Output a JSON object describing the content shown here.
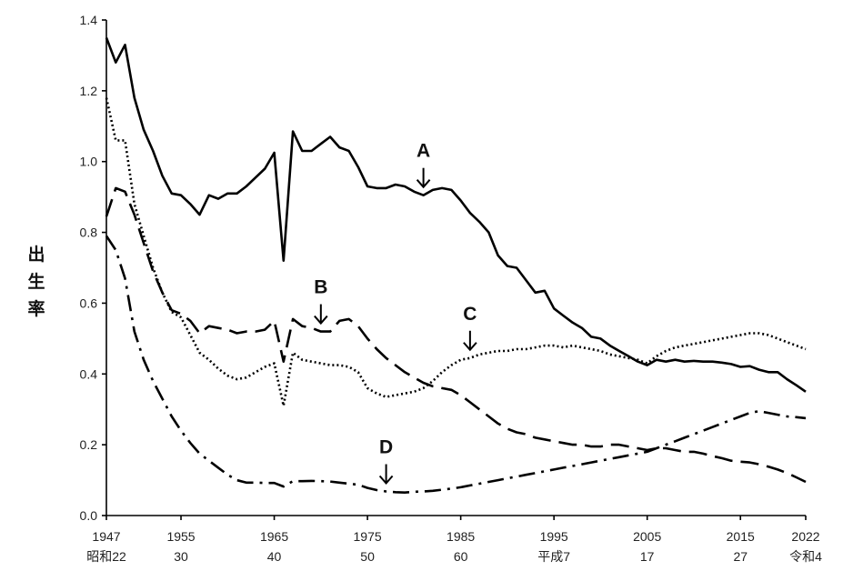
{
  "chart_data": {
    "type": "line",
    "title": "",
    "xlabel": "",
    "ylabel": "出生率",
    "xlim": [
      1947,
      2022
    ],
    "ylim": [
      0,
      1.4
    ],
    "grid": false,
    "legend": "none",
    "y_ticks": [
      "0.0",
      "0.2",
      "0.4",
      "0.6",
      "0.8",
      "1.0",
      "1.2",
      "1.4"
    ],
    "x_ticks": [
      {
        "year": 1947,
        "label": "1947",
        "era": "昭和22"
      },
      {
        "year": 1955,
        "label": "1955",
        "era": "30"
      },
      {
        "year": 1965,
        "label": "1965",
        "era": "40"
      },
      {
        "year": 1975,
        "label": "1975",
        "era": "50"
      },
      {
        "year": 1985,
        "label": "1985",
        "era": "60"
      },
      {
        "year": 1995,
        "label": "1995",
        "era": "平成7"
      },
      {
        "year": 2005,
        "label": "2005",
        "era": "17"
      },
      {
        "year": 2015,
        "label": "2015",
        "era": "27"
      },
      {
        "year": 2022,
        "label": "2022",
        "era": "令和4"
      }
    ],
    "annotations": [
      {
        "label": "A",
        "series": 0,
        "x": 1981
      },
      {
        "label": "B",
        "series": 1,
        "x": 1970
      },
      {
        "label": "C",
        "series": 2,
        "x": 1986
      },
      {
        "label": "D",
        "series": 3,
        "x": 1977
      }
    ],
    "series": [
      {
        "style": "solid",
        "x": [
          1947,
          1948,
          1949,
          1950,
          1951,
          1952,
          1953,
          1954,
          1955,
          1956,
          1957,
          1958,
          1959,
          1960,
          1961,
          1962,
          1963,
          1964,
          1965,
          1966,
          1967,
          1968,
          1969,
          1970,
          1971,
          1972,
          1973,
          1974,
          1975,
          1976,
          1977,
          1978,
          1979,
          1980,
          1981,
          1982,
          1983,
          1984,
          1985,
          1986,
          1987,
          1988,
          1989,
          1990,
          1991,
          1992,
          1993,
          1994,
          1995,
          1996,
          1997,
          1998,
          1999,
          2000,
          2001,
          2002,
          2003,
          2004,
          2005,
          2006,
          2007,
          2008,
          2009,
          2010,
          2011,
          2012,
          2013,
          2014,
          2015,
          2016,
          2017,
          2018,
          2019,
          2020,
          2021,
          2022
        ],
        "y": [
          1.35,
          1.28,
          1.33,
          1.18,
          1.09,
          1.03,
          0.96,
          0.91,
          0.905,
          0.88,
          0.85,
          0.905,
          0.895,
          0.91,
          0.91,
          0.93,
          0.955,
          0.98,
          1.025,
          0.72,
          1.085,
          1.03,
          1.03,
          1.05,
          1.07,
          1.04,
          1.03,
          0.985,
          0.93,
          0.925,
          0.925,
          0.935,
          0.93,
          0.915,
          0.905,
          0.92,
          0.925,
          0.92,
          0.89,
          0.855,
          0.83,
          0.8,
          0.735,
          0.705,
          0.7,
          0.665,
          0.63,
          0.635,
          0.585,
          0.565,
          0.545,
          0.53,
          0.505,
          0.5,
          0.48,
          0.465,
          0.45,
          0.435,
          0.425,
          0.44,
          0.435,
          0.44,
          0.435,
          0.437,
          0.435,
          0.435,
          0.432,
          0.428,
          0.42,
          0.422,
          0.412,
          0.405,
          0.405,
          0.385,
          0.368,
          0.35
        ]
      },
      {
        "style": "dashed",
        "x": [
          1947,
          1948,
          1949,
          1950,
          1951,
          1952,
          1953,
          1954,
          1955,
          1956,
          1957,
          1958,
          1959,
          1960,
          1961,
          1962,
          1963,
          1964,
          1965,
          1966,
          1967,
          1968,
          1969,
          1970,
          1971,
          1972,
          1973,
          1974,
          1975,
          1976,
          1977,
          1978,
          1979,
          1980,
          1981,
          1982,
          1983,
          1984,
          1985,
          1986,
          1987,
          1988,
          1989,
          1990,
          1991,
          1992,
          1993,
          1994,
          1995,
          1996,
          1997,
          1998,
          1999,
          2000,
          2001,
          2002,
          2003,
          2004,
          2005,
          2006,
          2007,
          2008,
          2009,
          2010,
          2011,
          2012,
          2013,
          2014,
          2015,
          2016,
          2017,
          2018,
          2019,
          2020,
          2021,
          2022
        ],
        "y": [
          0.845,
          0.925,
          0.915,
          0.85,
          0.77,
          0.69,
          0.63,
          0.58,
          0.57,
          0.55,
          0.515,
          0.535,
          0.53,
          0.525,
          0.515,
          0.52,
          0.52,
          0.525,
          0.55,
          0.435,
          0.555,
          0.535,
          0.53,
          0.52,
          0.52,
          0.55,
          0.555,
          0.535,
          0.5,
          0.47,
          0.445,
          0.425,
          0.405,
          0.39,
          0.375,
          0.365,
          0.36,
          0.355,
          0.34,
          0.32,
          0.3,
          0.28,
          0.26,
          0.245,
          0.235,
          0.23,
          0.22,
          0.215,
          0.21,
          0.205,
          0.2,
          0.2,
          0.195,
          0.195,
          0.2,
          0.2,
          0.195,
          0.19,
          0.185,
          0.19,
          0.19,
          0.185,
          0.18,
          0.18,
          0.175,
          0.168,
          0.162,
          0.155,
          0.152,
          0.15,
          0.145,
          0.138,
          0.13,
          0.12,
          0.108,
          0.095
        ]
      },
      {
        "style": "dotted",
        "x": [
          1947,
          1948,
          1949,
          1950,
          1951,
          1952,
          1953,
          1954,
          1955,
          1956,
          1957,
          1958,
          1959,
          1960,
          1961,
          1962,
          1963,
          1964,
          1965,
          1966,
          1967,
          1968,
          1969,
          1970,
          1971,
          1972,
          1973,
          1974,
          1975,
          1976,
          1977,
          1978,
          1979,
          1980,
          1981,
          1982,
          1983,
          1984,
          1985,
          1986,
          1987,
          1988,
          1989,
          1990,
          1991,
          1992,
          1993,
          1994,
          1995,
          1996,
          1997,
          1998,
          1999,
          2000,
          2001,
          2002,
          2003,
          2004,
          2005,
          2006,
          2007,
          2008,
          2009,
          2010,
          2011,
          2012,
          2013,
          2014,
          2015,
          2016,
          2017,
          2018,
          2019,
          2020,
          2021,
          2022
        ],
        "y": [
          1.18,
          1.06,
          1.06,
          0.88,
          0.79,
          0.7,
          0.63,
          0.575,
          0.56,
          0.51,
          0.46,
          0.44,
          0.415,
          0.395,
          0.385,
          0.39,
          0.405,
          0.42,
          0.43,
          0.31,
          0.46,
          0.44,
          0.435,
          0.43,
          0.425,
          0.425,
          0.42,
          0.405,
          0.36,
          0.345,
          0.335,
          0.34,
          0.345,
          0.35,
          0.36,
          0.38,
          0.405,
          0.425,
          0.44,
          0.445,
          0.455,
          0.46,
          0.465,
          0.465,
          0.47,
          0.47,
          0.475,
          0.48,
          0.48,
          0.475,
          0.48,
          0.475,
          0.47,
          0.465,
          0.455,
          0.45,
          0.445,
          0.44,
          0.43,
          0.45,
          0.465,
          0.475,
          0.48,
          0.485,
          0.49,
          0.495,
          0.5,
          0.505,
          0.51,
          0.515,
          0.515,
          0.51,
          0.5,
          0.49,
          0.48,
          0.47
        ]
      },
      {
        "style": "dash-dot",
        "x": [
          1947,
          1948,
          1949,
          1950,
          1951,
          1952,
          1953,
          1954,
          1955,
          1956,
          1957,
          1958,
          1959,
          1960,
          1961,
          1962,
          1963,
          1964,
          1965,
          1966,
          1967,
          1968,
          1969,
          1970,
          1971,
          1972,
          1973,
          1974,
          1975,
          1976,
          1977,
          1978,
          1979,
          1980,
          1981,
          1982,
          1983,
          1984,
          1985,
          1986,
          1987,
          1988,
          1989,
          1990,
          1991,
          1992,
          1993,
          1994,
          1995,
          1996,
          1997,
          1998,
          1999,
          2000,
          2001,
          2002,
          2003,
          2004,
          2005,
          2006,
          2007,
          2008,
          2009,
          2010,
          2011,
          2012,
          2013,
          2014,
          2015,
          2016,
          2017,
          2018,
          2019,
          2020,
          2021,
          2022
        ],
        "y": [
          0.79,
          0.75,
          0.67,
          0.52,
          0.44,
          0.38,
          0.33,
          0.28,
          0.24,
          0.205,
          0.175,
          0.155,
          0.135,
          0.115,
          0.1,
          0.093,
          0.093,
          0.092,
          0.092,
          0.082,
          0.097,
          0.097,
          0.098,
          0.097,
          0.096,
          0.093,
          0.09,
          0.087,
          0.078,
          0.072,
          0.068,
          0.066,
          0.065,
          0.067,
          0.068,
          0.07,
          0.073,
          0.076,
          0.08,
          0.085,
          0.09,
          0.095,
          0.1,
          0.105,
          0.11,
          0.115,
          0.12,
          0.125,
          0.13,
          0.135,
          0.14,
          0.145,
          0.15,
          0.155,
          0.16,
          0.165,
          0.17,
          0.175,
          0.18,
          0.19,
          0.2,
          0.21,
          0.22,
          0.23,
          0.24,
          0.25,
          0.26,
          0.27,
          0.28,
          0.29,
          0.295,
          0.29,
          0.285,
          0.28,
          0.278,
          0.275
        ]
      }
    ]
  }
}
